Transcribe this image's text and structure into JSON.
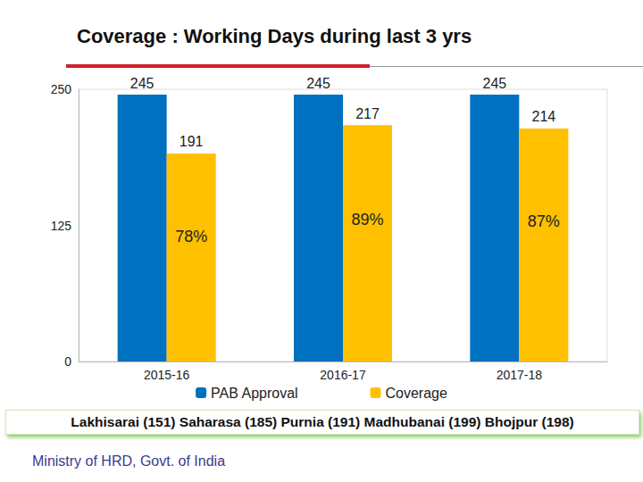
{
  "chart_data": {
    "type": "bar",
    "title": "Coverage : Working Days during last 3 yrs",
    "categories": [
      "2015-16",
      "2016-17",
      "2017-18"
    ],
    "series": [
      {
        "name": "PAB Approval",
        "color": "#0070c0",
        "values": [
          245,
          245,
          245
        ]
      },
      {
        "name": "Coverage",
        "color": "#ffc000",
        "values": [
          191,
          217,
          214
        ],
        "annotations": [
          "78%",
          "89%",
          "87%"
        ]
      }
    ],
    "ylim": [
      0,
      250
    ],
    "yticks": [
      0,
      125,
      250
    ],
    "grid": false,
    "data_labels": true,
    "legend": "bottom",
    "footnote": "Lakhisarai (151) Saharasa (185) Purnia (191) Madhubanai (199) Bhojpur (198)",
    "source": "Ministry of HRD, Govt. of India"
  }
}
